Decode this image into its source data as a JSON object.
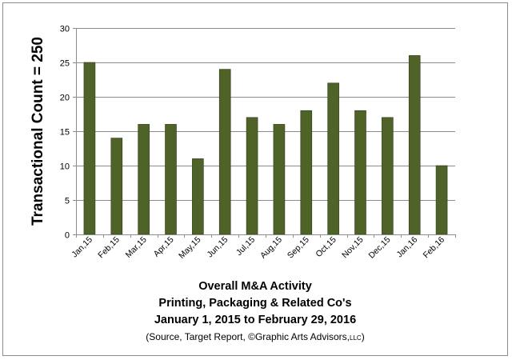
{
  "chart_data": {
    "type": "bar",
    "categories": [
      "Jan,15",
      "Feb,15",
      "Mar,15",
      "Apr,15",
      "May,15",
      "Jun,15",
      "Jul,15",
      "Aug,15",
      "Sep,15",
      "Oct,15",
      "Nov,15",
      "Dec,15",
      "Jan,16",
      "Feb,16"
    ],
    "values": [
      25,
      14,
      16,
      16,
      11,
      24,
      17,
      16,
      18,
      22,
      18,
      17,
      26,
      10
    ],
    "ylabel": "Transactional Count = 250",
    "ylim": [
      0,
      30
    ],
    "yticks": [
      0,
      5,
      10,
      15,
      20,
      25,
      30
    ],
    "grid": true,
    "bar_color": "#4f6228",
    "bar_edge_color": "#2e3b17",
    "title_lines": [
      "Overall M&A Activity",
      "Printing, Packaging & Related Co's",
      "January 1, 2015 to February 29, 2016"
    ],
    "source": {
      "prefix": "(Source, Target Report, ©Graphic Arts Advisors,",
      "suffix": "LLC",
      "close": ")"
    }
  }
}
